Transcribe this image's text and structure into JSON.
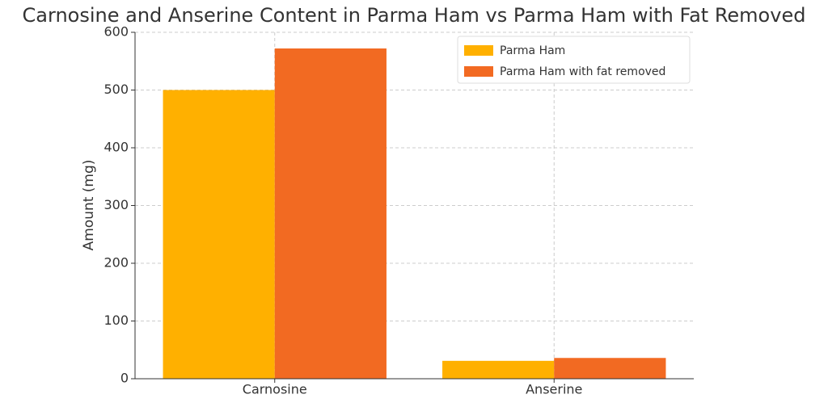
{
  "chart_data": {
    "type": "bar",
    "title": "Carnosine and Anserine Content in Parma Ham vs Parma Ham with Fat Removed",
    "y_label": "Amount (mg)",
    "categories": [
      "Carnosine",
      "Anserine"
    ],
    "series": [
      {
        "name": "Parma Ham",
        "color": "#ffb000",
        "values": [
          500,
          31
        ]
      },
      {
        "name": "Parma Ham with fat removed",
        "color": "#f26a22",
        "values": [
          572,
          36
        ]
      }
    ],
    "ylim": [
      0,
      600
    ],
    "yticks": [
      0,
      100,
      200,
      300,
      400,
      500,
      600
    ],
    "grid": true,
    "legend": "upper right"
  }
}
